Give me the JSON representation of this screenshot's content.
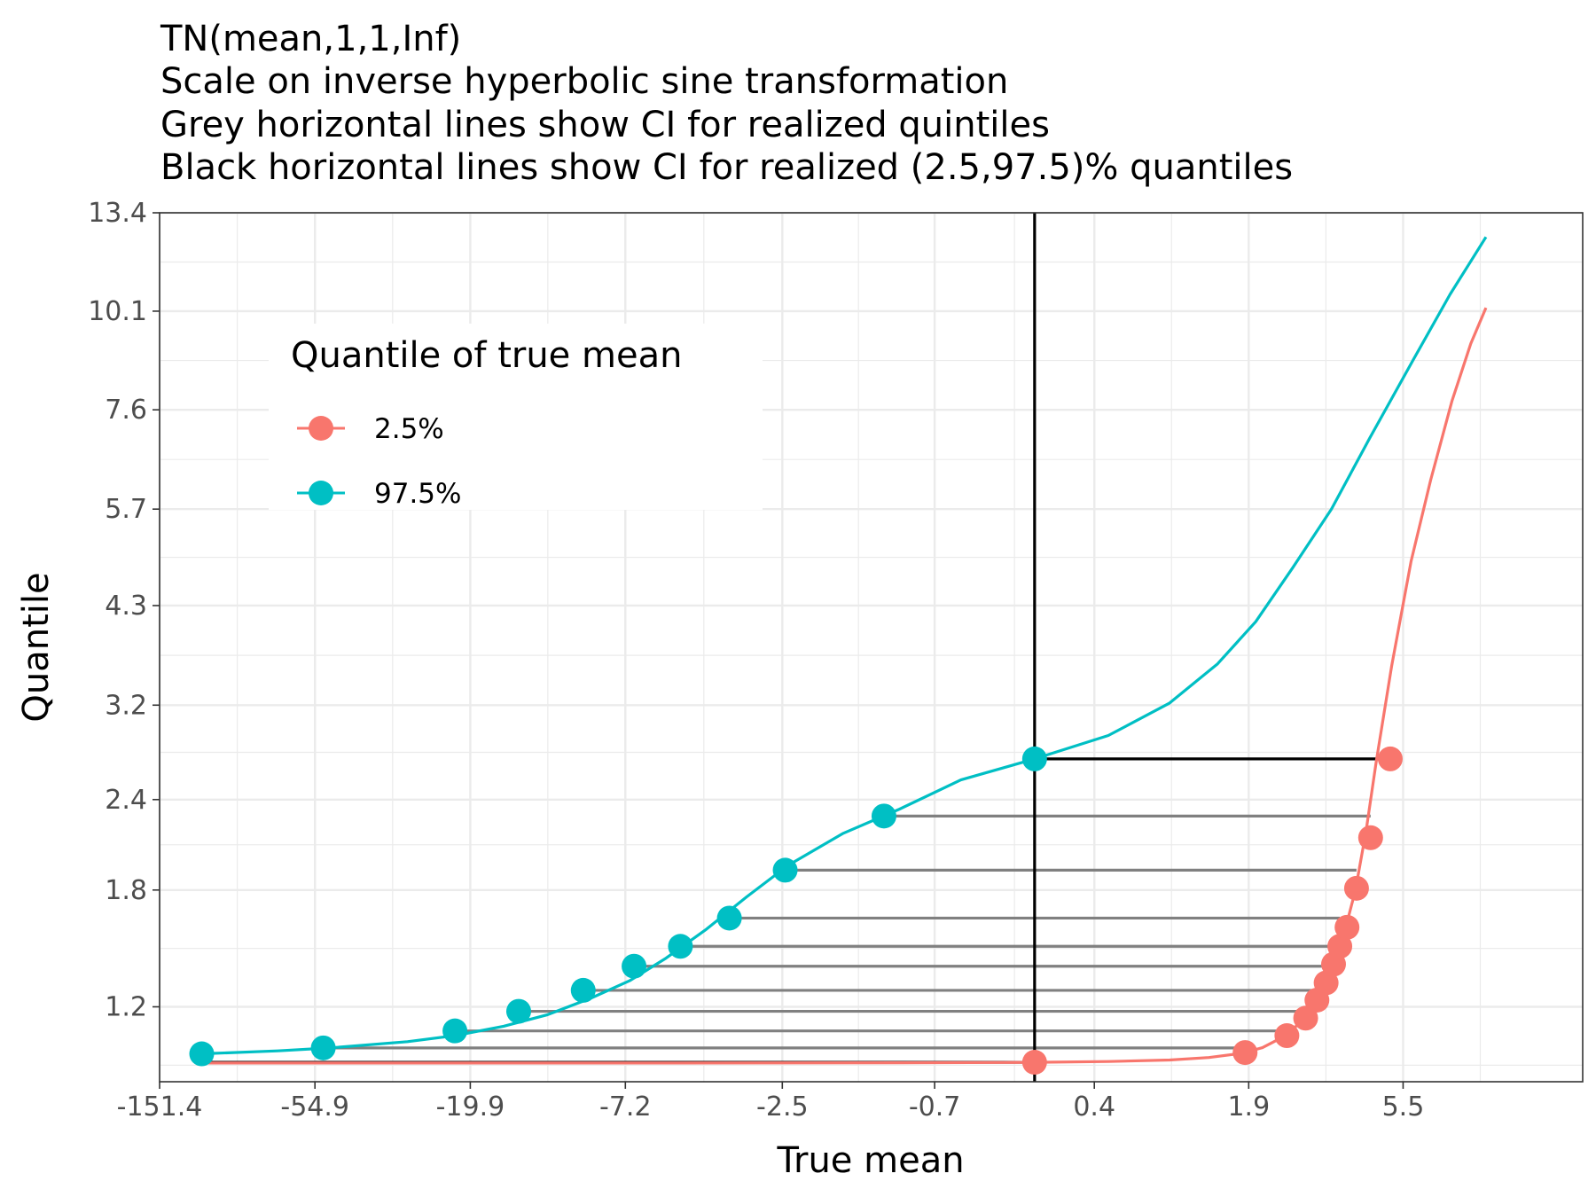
{
  "chart_data": {
    "type": "line",
    "title": [
      "TN(mean,1,1,Inf)",
      "Scale on inverse hyperbolic sine transformation",
      "Grey horizontal lines show CI for realized quintiles",
      "Black horizontal lines show CI for realized (2.5,97.5)% quantiles"
    ],
    "xlabel": "True mean",
    "ylabel": "Quantile",
    "x_scale": "asinh",
    "y_scale": "asinh",
    "x_ticks": [
      "-151.4",
      "-54.9",
      "-19.9",
      "-7.2",
      "-2.5",
      "-0.7",
      "0.4",
      "1.9",
      "5.5"
    ],
    "x_tick_values": [
      -151.4,
      -54.9,
      -19.9,
      -7.2,
      -2.5,
      -0.7,
      0.4,
      1.9,
      5.5
    ],
    "y_ticks": [
      "13.4",
      "10.1",
      "7.6",
      "5.7",
      "4.3",
      "3.2",
      "2.4",
      "1.8",
      "1.2"
    ],
    "y_tick_values": [
      13.4,
      10.1,
      7.6,
      5.7,
      4.3,
      3.2,
      2.4,
      1.8,
      1.2
    ],
    "xlim": [
      -151.4,
      17.9
    ],
    "ylim": [
      0.89,
      13.4
    ],
    "grid": true,
    "legend": {
      "title": "Quantile of true mean",
      "position": "top-left",
      "entries": [
        {
          "label": "2.5%",
          "color": "#F8766D"
        },
        {
          "label": "97.5%",
          "color": "#00BFC4"
        }
      ]
    },
    "series": [
      {
        "name": "2.5%",
        "color": "#F8766D",
        "curve": [
          [
            -115,
            0.963
          ],
          [
            -30,
            0.963
          ],
          [
            -5,
            0.963
          ],
          [
            -1,
            0.964
          ],
          [
            -0.2,
            0.965
          ],
          [
            0,
            0.966
          ],
          [
            0.5,
            0.969
          ],
          [
            1.0,
            0.975
          ],
          [
            1.4,
            0.985
          ],
          [
            1.8,
            1.002
          ],
          [
            2.1,
            1.025
          ],
          [
            2.4,
            1.065
          ],
          [
            2.75,
            1.13
          ],
          [
            3.1,
            1.24
          ],
          [
            3.4,
            1.37
          ],
          [
            3.7,
            1.55
          ],
          [
            4.0,
            1.8
          ],
          [
            4.3,
            2.18
          ],
          [
            4.6,
            2.7
          ],
          [
            5.1,
            3.6
          ],
          [
            5.8,
            4.9
          ],
          [
            6.6,
            6.2
          ],
          [
            7.6,
            7.8
          ],
          [
            8.6,
            9.2
          ],
          [
            9.5,
            10.2
          ]
        ],
        "points": [
          [
            0.0,
            0.966
          ],
          [
            1.85,
            1.005
          ],
          [
            2.5,
            1.075
          ],
          [
            2.85,
            1.15
          ],
          [
            3.08,
            1.23
          ],
          [
            3.28,
            1.31
          ],
          [
            3.45,
            1.4
          ],
          [
            3.6,
            1.49
          ],
          [
            3.78,
            1.59
          ],
          [
            4.03,
            1.81
          ],
          [
            4.43,
            2.13
          ],
          [
            5.05,
            2.72
          ]
        ]
      },
      {
        "name": "97.5%",
        "color": "#00BFC4",
        "curve": [
          [
            -115,
            1.0
          ],
          [
            -70,
            1.012
          ],
          [
            -50,
            1.024
          ],
          [
            -30,
            1.05
          ],
          [
            -22,
            1.075
          ],
          [
            -16,
            1.115
          ],
          [
            -12,
            1.165
          ],
          [
            -9,
            1.24
          ],
          [
            -7,
            1.32
          ],
          [
            -5.5,
            1.43
          ],
          [
            -4.2,
            1.58
          ],
          [
            -3.2,
            1.76
          ],
          [
            -2.4,
            1.95
          ],
          [
            -1.6,
            2.16
          ],
          [
            -1.0,
            2.33
          ],
          [
            -0.5,
            2.55
          ],
          [
            0.0,
            2.72
          ],
          [
            0.5,
            2.92
          ],
          [
            1.0,
            3.22
          ],
          [
            1.5,
            3.62
          ],
          [
            2.0,
            4.1
          ],
          [
            2.6,
            4.8
          ],
          [
            3.4,
            5.7
          ],
          [
            4.4,
            7.0
          ],
          [
            5.9,
            8.8
          ],
          [
            7.5,
            10.6
          ],
          [
            9.5,
            12.5
          ]
        ],
        "points": [
          [
            -115,
            1.0
          ],
          [
            -52,
            1.024
          ],
          [
            -22,
            1.095
          ],
          [
            -14.5,
            1.18
          ],
          [
            -9.5,
            1.275
          ],
          [
            -6.8,
            1.39
          ],
          [
            -5.0,
            1.49
          ],
          [
            -3.6,
            1.64
          ],
          [
            -2.45,
            1.92
          ],
          [
            -1.15,
            2.28
          ],
          [
            0.0,
            2.72
          ]
        ]
      }
    ],
    "reference_line": {
      "x": 0.0,
      "color": "#000000"
    },
    "ci_segments": [
      {
        "y": 0.966,
        "x_start": -115,
        "x_end": 0.0,
        "color": "#000000"
      },
      {
        "y": 1.024,
        "x_start": -52,
        "x_end": 1.85,
        "color": "#808080"
      },
      {
        "y": 1.095,
        "x_start": -22,
        "x_end": 2.5,
        "color": "#808080"
      },
      {
        "y": 1.18,
        "x_start": -14.5,
        "x_end": 2.85,
        "color": "#808080"
      },
      {
        "y": 1.275,
        "x_start": -9.5,
        "x_end": 3.08,
        "color": "#808080"
      },
      {
        "y": 1.39,
        "x_start": -6.8,
        "x_end": 3.28,
        "color": "#808080"
      },
      {
        "y": 1.49,
        "x_start": -5.0,
        "x_end": 3.45,
        "color": "#808080"
      },
      {
        "y": 1.64,
        "x_start": -3.6,
        "x_end": 3.6,
        "color": "#808080"
      },
      {
        "y": 1.92,
        "x_start": -2.45,
        "x_end": 4.03,
        "color": "#808080"
      },
      {
        "y": 2.28,
        "x_start": -1.15,
        "x_end": 4.43,
        "color": "#808080"
      },
      {
        "y": 2.72,
        "x_start": 0.0,
        "x_end": 5.05,
        "color": "#000000"
      }
    ]
  }
}
